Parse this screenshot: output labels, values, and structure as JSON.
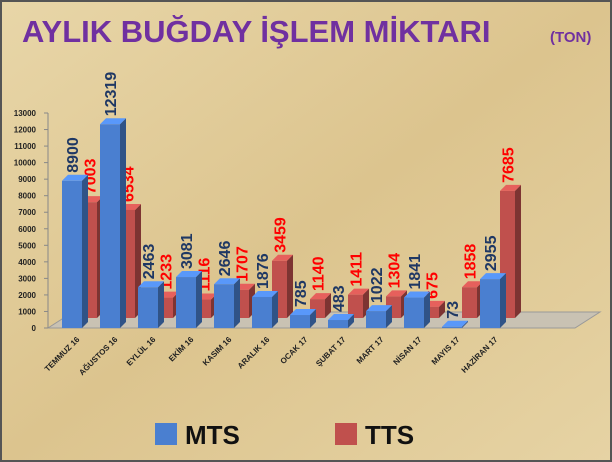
{
  "chart_data": {
    "type": "bar3d",
    "title": "AYLIK BUĞDAY İŞLEM MİKTARI",
    "title_unit": "(TON)",
    "categories": [
      "TEMMUZ 16",
      "AĞUSTOS 16",
      "EYLÜL 16",
      "EKİM 16",
      "KASIM 16",
      "ARALIK 16",
      "OCAK 17",
      "ŞUBAT 17",
      "MART 17",
      "NİSAN 17",
      "MAYIS 17",
      "HAZİRAN 17"
    ],
    "series": [
      {
        "name": "MTS",
        "color": "#4a7fd0",
        "label_color": "#1f3864",
        "values": [
          8900,
          12319,
          2463,
          3081,
          2646,
          1876,
          785,
          483,
          1022,
          1841,
          73,
          2955
        ]
      },
      {
        "name": "TTS",
        "color": "#c0504d",
        "label_color": "#ff0000",
        "values": [
          7003,
          6534,
          1233,
          1116,
          1707,
          3459,
          1140,
          1411,
          1304,
          675,
          1858,
          7685
        ]
      }
    ],
    "ylim": [
      0,
      13000
    ],
    "yticks": [
      0,
      1000,
      2000,
      3000,
      4000,
      5000,
      6000,
      7000,
      8000,
      9000,
      10000,
      11000,
      12000,
      13000
    ],
    "legend": "bottom"
  }
}
